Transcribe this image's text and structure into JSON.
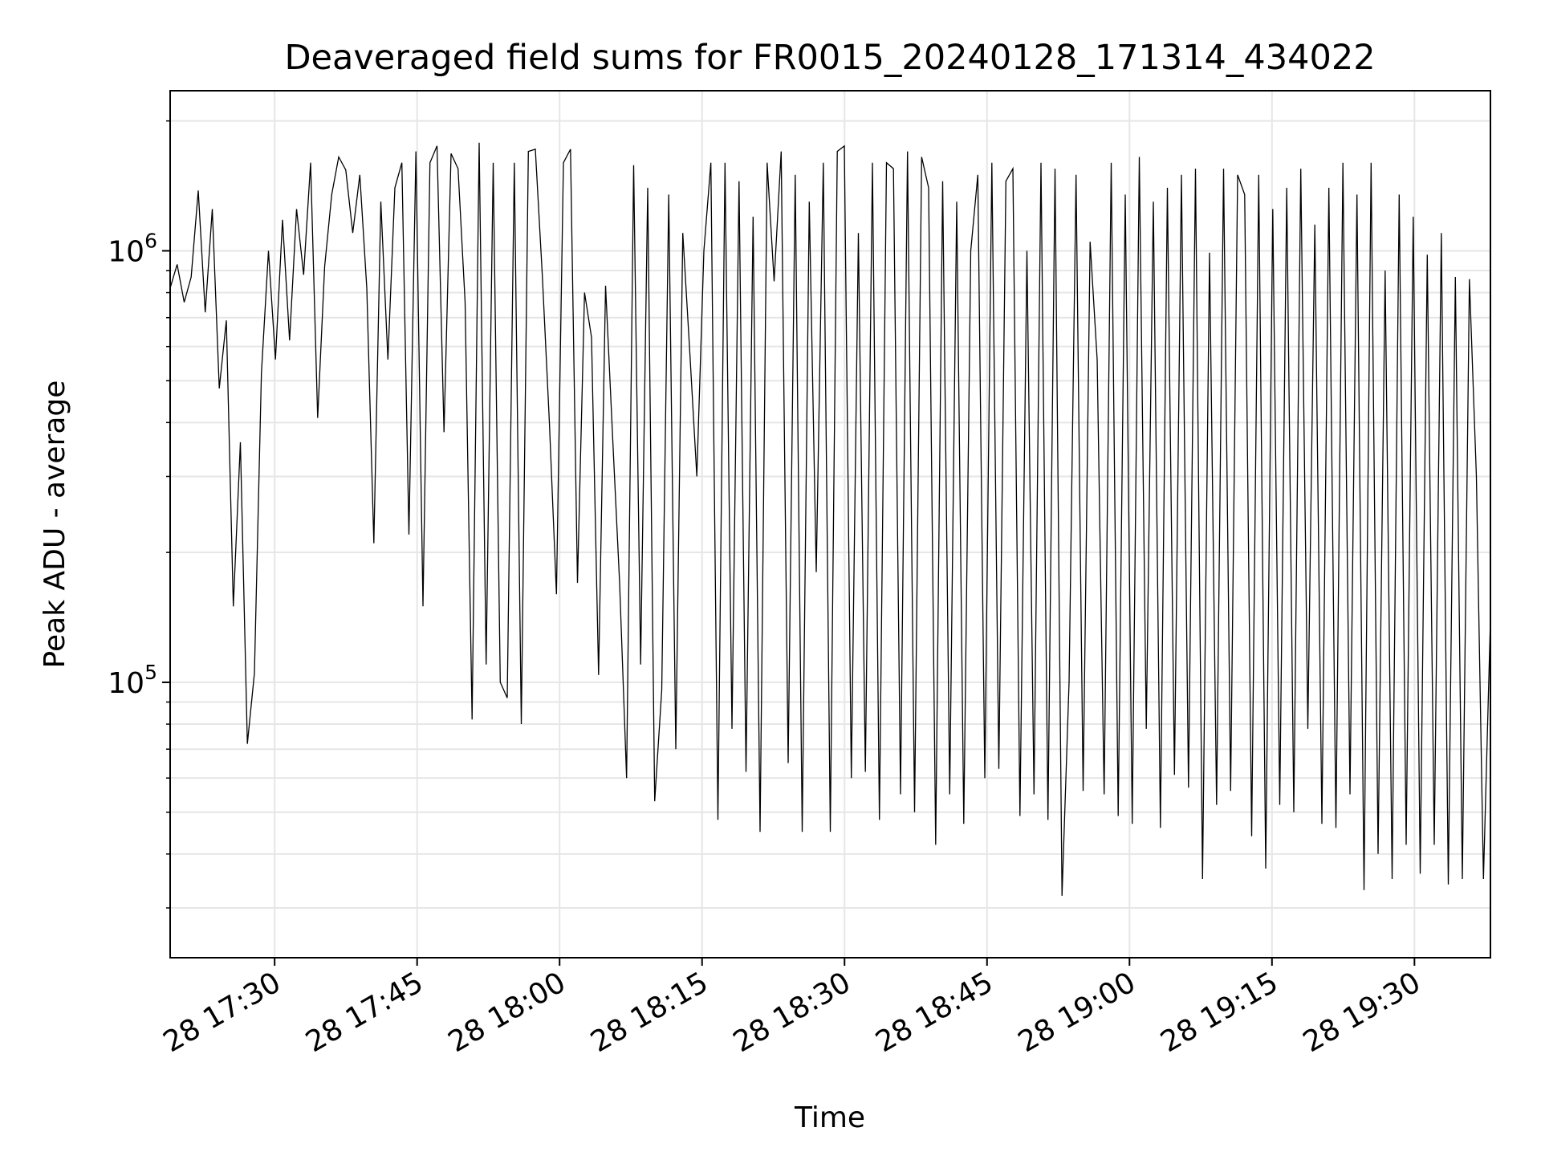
{
  "chart_data": {
    "type": "line",
    "title": "Deaveraged field sums for FR0015_20240128_171314_434022",
    "xlabel": "Time",
    "ylabel": "Peak ADU - average",
    "yscale": "log",
    "grid": true,
    "line_color": "#000000",
    "grid_color": "#e6e6e6",
    "xlim": [
      "2024-01-28 17:19",
      "2024-01-28 19:38"
    ],
    "ylim": [
      23000,
      2350000
    ],
    "x_ticks": [
      {
        "t": "2024-01-28 17:30",
        "label": "28 17:30"
      },
      {
        "t": "2024-01-28 17:45",
        "label": "28 17:45"
      },
      {
        "t": "2024-01-28 18:00",
        "label": "28 18:00"
      },
      {
        "t": "2024-01-28 18:15",
        "label": "28 18:15"
      },
      {
        "t": "2024-01-28 18:30",
        "label": "28 18:30"
      },
      {
        "t": "2024-01-28 18:45",
        "label": "28 18:45"
      },
      {
        "t": "2024-01-28 19:00",
        "label": "28 19:00"
      },
      {
        "t": "2024-01-28 19:15",
        "label": "28 19:15"
      },
      {
        "t": "2024-01-28 19:30",
        "label": "28 19:30"
      }
    ],
    "y_ticks": [
      {
        "value": 100000,
        "base": "10",
        "exp": "5"
      },
      {
        "value": 1000000,
        "base": "10",
        "exp": "6"
      }
    ],
    "series": [
      {
        "x_start": "2024-01-28 17:19",
        "x_end": "2024-01-28 19:38",
        "values": [
          820000,
          930000,
          760000,
          870000,
          1380000,
          720000,
          1250000,
          480000,
          690000,
          150000,
          360000,
          72000,
          105000,
          520000,
          1000000,
          560000,
          1180000,
          620000,
          1250000,
          880000,
          1600000,
          410000,
          920000,
          1350000,
          1650000,
          1540000,
          1100000,
          1500000,
          820000,
          210000,
          1300000,
          560000,
          1400000,
          1600000,
          220000,
          1700000,
          150000,
          1600000,
          1750000,
          380000,
          1680000,
          1550000,
          760000,
          82000,
          1780000,
          110000,
          1600000,
          100000,
          92000,
          1600000,
          80000,
          1700000,
          1720000,
          870000,
          400000,
          160000,
          1600000,
          1720000,
          170000,
          800000,
          630000,
          104000,
          830000,
          370000,
          170000,
          60000,
          1580000,
          110000,
          1400000,
          53000,
          96000,
          1350000,
          70000,
          1100000,
          580000,
          300000,
          1000000,
          1600000,
          48000,
          1600000,
          78000,
          1450000,
          62000,
          1200000,
          45000,
          1600000,
          850000,
          1700000,
          65000,
          1500000,
          45000,
          1300000,
          180000,
          1600000,
          45000,
          1700000,
          1750000,
          60000,
          1100000,
          62000,
          1600000,
          48000,
          1600000,
          1550000,
          55000,
          1700000,
          50000,
          1650000,
          1400000,
          42000,
          1450000,
          55000,
          1300000,
          47000,
          1000000,
          1500000,
          60000,
          1600000,
          63000,
          1450000,
          1550000,
          49000,
          1000000,
          55000,
          1600000,
          48000,
          1550000,
          32000,
          100000,
          1500000,
          56000,
          1050000,
          560000,
          55000,
          1600000,
          49000,
          1350000,
          47000,
          1650000,
          78000,
          1300000,
          46000,
          1400000,
          61000,
          1500000,
          57000,
          1550000,
          35000,
          990000,
          52000,
          1550000,
          56000,
          1500000,
          1350000,
          44000,
          1500000,
          37000,
          1250000,
          52000,
          1400000,
          50000,
          1550000,
          78000,
          1150000,
          47000,
          1400000,
          46000,
          1600000,
          55000,
          1350000,
          33000,
          1600000,
          40000,
          900000,
          35000,
          1350000,
          42000,
          1200000,
          36000,
          980000,
          42000,
          1100000,
          34000,
          870000,
          35000,
          860000,
          300000,
          35000,
          140000
        ]
      }
    ]
  }
}
